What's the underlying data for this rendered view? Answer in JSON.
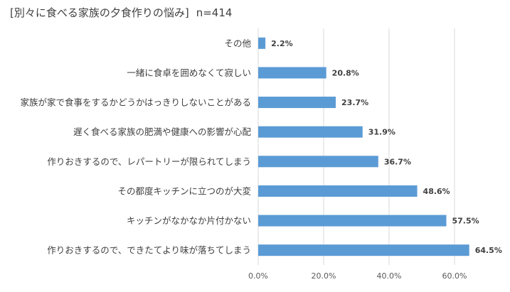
{
  "chart_data": {
    "type": "bar",
    "orientation": "horizontal",
    "title": "[別々に食べる家族の夕食作りの悩み]",
    "sample_size": "n=414",
    "categories": [
      "その他",
      "一緒に食卓を囲めなくて寂しい",
      "家族が家で食事をするかどうかはっきりしないことがある",
      "遅く食べる家族の肥満や健康への影響が心配",
      "作りおきするので、レパートリーが限られてしまう",
      "その都度キッチンに立つのが大変",
      "キッチンがなかなか片付かない",
      "作りおきするので、できたてより味が落ちてしまう"
    ],
    "values": [
      2.2,
      20.8,
      23.7,
      31.9,
      36.7,
      48.6,
      57.5,
      64.5
    ],
    "value_labels": [
      "2.2%",
      "20.8%",
      "23.7%",
      "31.9%",
      "36.7%",
      "48.6%",
      "57.5%",
      "64.5%"
    ],
    "xlim": [
      0,
      70
    ],
    "ticks": [
      0,
      20,
      40,
      60
    ],
    "tick_labels": [
      "0.0%",
      "20.0%",
      "40.0%",
      "60.0%"
    ],
    "grid": true,
    "bar_color": "#5b9bd5",
    "grid_color": "#d9d9d9",
    "xlabel": "",
    "ylabel": ""
  }
}
